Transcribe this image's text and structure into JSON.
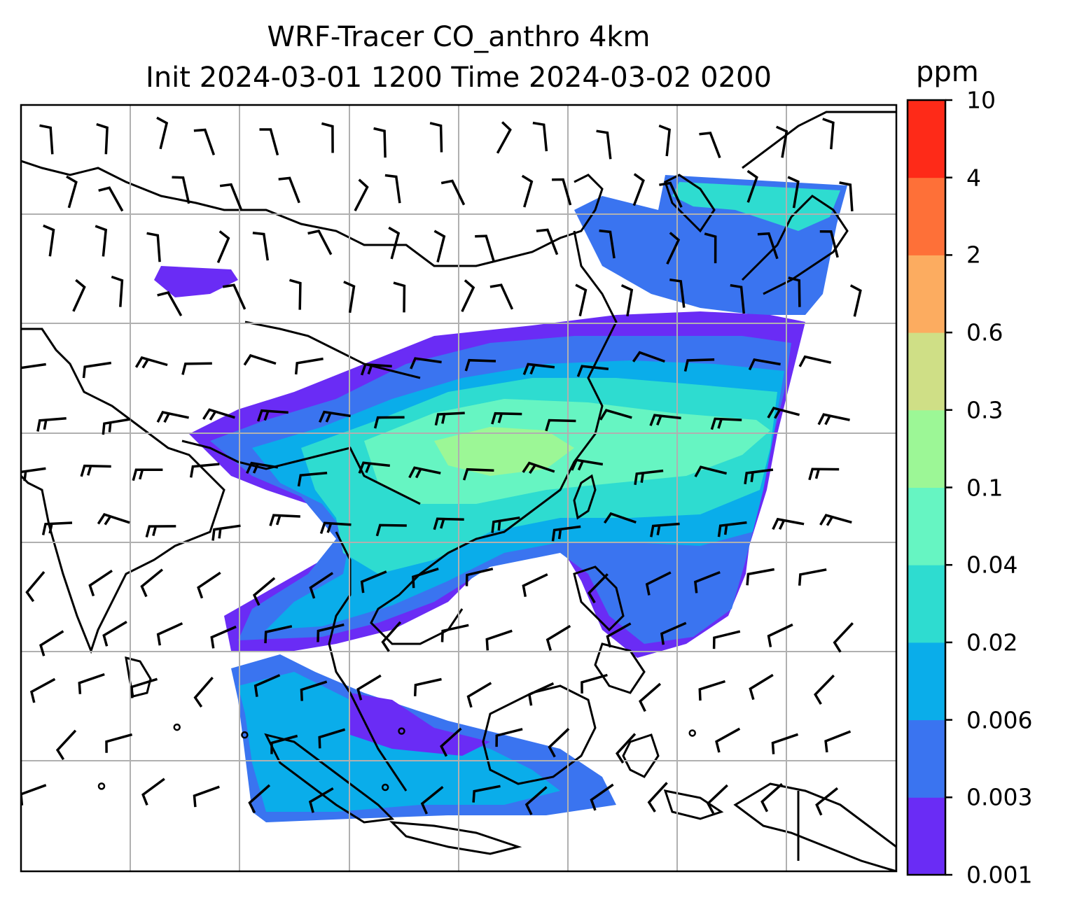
{
  "title": {
    "line1": "WRF-Tracer CO_anthro 4km",
    "line2": "Init 2024-03-01 1200 Time 2024-03-02 0200"
  },
  "colorbar": {
    "unit": "ppm",
    "levels": [
      "0.001",
      "0.003",
      "0.006",
      "0.02",
      "0.04",
      "0.1",
      "0.3",
      "0.6",
      "2",
      "4",
      "10"
    ],
    "colors": [
      "#6a2cf5",
      "#3a74f0",
      "#0aadea",
      "#2edcd0",
      "#66f5c2",
      "#9cf796",
      "#cfdf86",
      "#fcac60",
      "#fe7038",
      "#fe2a18"
    ]
  },
  "map": {
    "field": "CO_anthro",
    "gridlines": true,
    "wind_barbs": true
  }
}
